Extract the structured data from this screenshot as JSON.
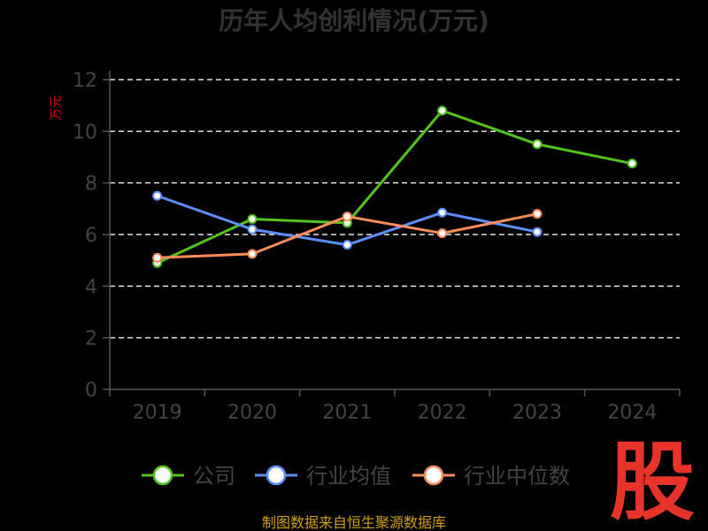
{
  "chart_data": {
    "type": "line",
    "title": "历年人均创利情况(万元)",
    "ylabel": "万元",
    "categories": [
      "2019",
      "2020",
      "2021",
      "2022",
      "2023",
      "2024"
    ],
    "yticks": [
      "0",
      "2",
      "4",
      "6",
      "8",
      "10",
      "12"
    ],
    "ylim": [
      0,
      12
    ],
    "grid": true,
    "legend_position": "bottom",
    "series": [
      {
        "name": "公司",
        "color": "#52c41a",
        "values": [
          4.9,
          6.6,
          6.45,
          10.8,
          9.5,
          8.75
        ]
      },
      {
        "name": "行业均值",
        "color": "#5b8ff9",
        "values": [
          7.5,
          6.2,
          5.6,
          6.85,
          6.1,
          null
        ]
      },
      {
        "name": "行业中位数",
        "color": "#ff8c5a",
        "values": [
          5.1,
          5.25,
          6.7,
          6.05,
          6.8,
          null
        ]
      }
    ]
  },
  "footer": {
    "source": "制图数据来自恒生聚源数据库"
  },
  "logo": {
    "text": "股"
  }
}
